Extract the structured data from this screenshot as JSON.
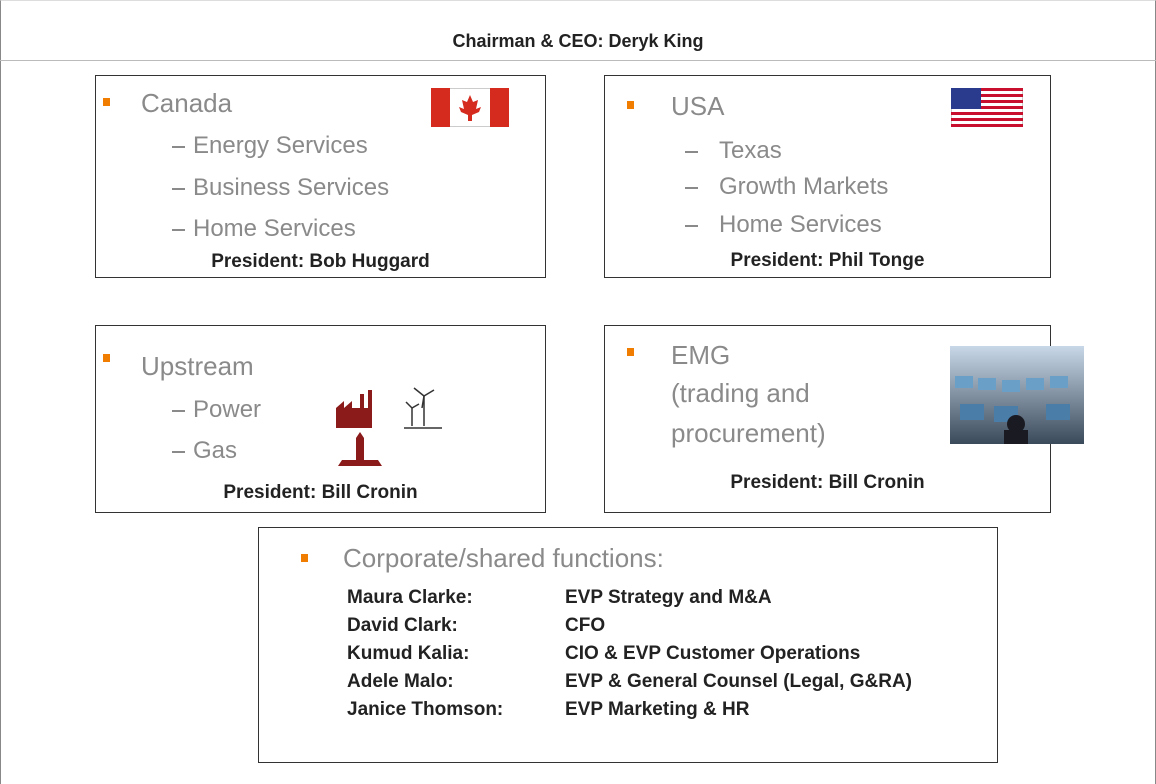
{
  "header": {
    "title": "Chairman & CEO: Deryk King"
  },
  "units": [
    {
      "title": "Canada",
      "items": [
        "Energy Services",
        "Business Services",
        "Home Services"
      ],
      "president": "President: Bob Huggard"
    },
    {
      "title": "USA",
      "items": [
        "Texas",
        "Growth Markets",
        "Home Services"
      ],
      "president": "President: Phil Tonge"
    },
    {
      "title": "Upstream",
      "items": [
        "Power",
        "Gas"
      ],
      "president": "President: Bill Cronin"
    },
    {
      "title_lines": [
        "EMG",
        "(trading and",
        "procurement)"
      ],
      "president": "President: Bill Cronin"
    }
  ],
  "corporate": {
    "title": "Corporate/shared functions:",
    "rows": [
      [
        "Maura Clarke:",
        "EVP Strategy and M&A"
      ],
      [
        "David Clark:",
        "CFO"
      ],
      [
        "Kumud Kalia:",
        "CIO & EVP Customer Operations"
      ],
      [
        "Adele Malo:",
        "EVP & General Counsel (Legal, G&RA)"
      ],
      [
        "Janice Thomson:",
        "EVP Marketing & HR"
      ]
    ]
  }
}
